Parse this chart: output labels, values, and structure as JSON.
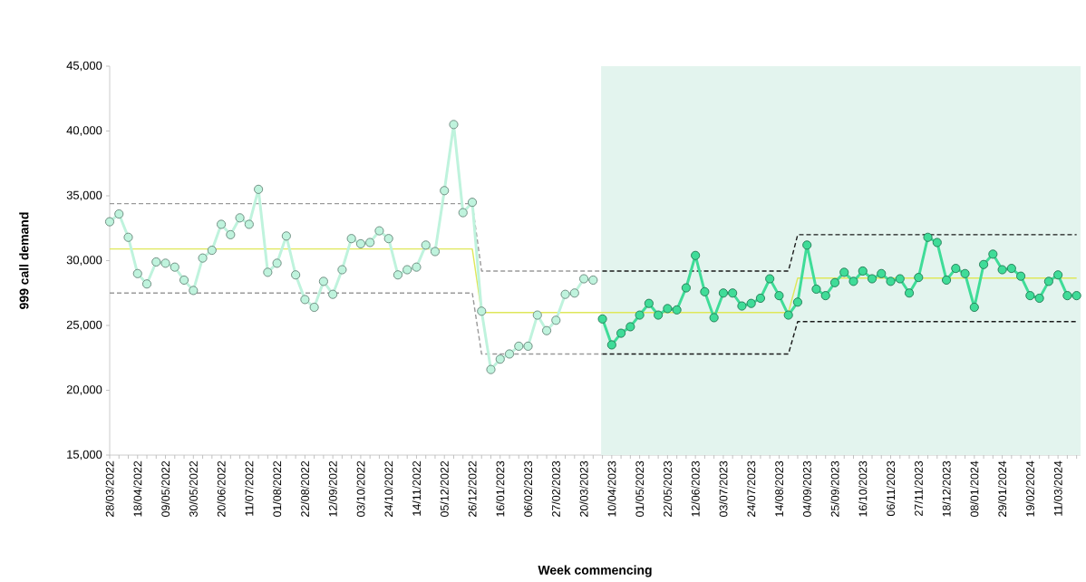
{
  "chart_data": {
    "type": "line",
    "xlabel": "Week commencing",
    "ylabel": "999 call demand",
    "x": [
      "2022-03-28",
      "2022-04-04",
      "2022-04-11",
      "2022-04-18",
      "2022-04-25",
      "2022-05-02",
      "2022-05-09",
      "2022-05-16",
      "2022-05-23",
      "2022-05-30",
      "2022-06-06",
      "2022-06-13",
      "2022-06-20",
      "2022-06-27",
      "2022-07-04",
      "2022-07-11",
      "2022-07-18",
      "2022-07-25",
      "2022-08-01",
      "2022-08-08",
      "2022-08-15",
      "2022-08-22",
      "2022-08-29",
      "2022-09-05",
      "2022-09-12",
      "2022-09-19",
      "2022-09-26",
      "2022-10-03",
      "2022-10-10",
      "2022-10-17",
      "2022-10-24",
      "2022-10-31",
      "2022-11-07",
      "2022-11-14",
      "2022-11-21",
      "2022-11-28",
      "2022-12-05",
      "2022-12-12",
      "2022-12-19",
      "2022-12-26",
      "2023-01-02",
      "2023-01-09",
      "2023-01-16",
      "2023-01-23",
      "2023-01-30",
      "2023-02-06",
      "2023-02-13",
      "2023-02-20",
      "2023-02-27",
      "2023-03-06",
      "2023-03-13",
      "2023-03-20",
      "2023-03-27",
      "2023-04-03",
      "2023-04-10",
      "2023-04-17",
      "2023-04-24",
      "2023-05-01",
      "2023-05-08",
      "2023-05-15",
      "2023-05-22",
      "2023-05-29",
      "2023-06-05",
      "2023-06-12",
      "2023-06-19",
      "2023-06-26",
      "2023-07-03",
      "2023-07-10",
      "2023-07-17",
      "2023-07-24",
      "2023-07-31",
      "2023-08-07",
      "2023-08-14",
      "2023-08-21",
      "2023-08-28",
      "2023-09-04",
      "2023-09-11",
      "2023-09-18",
      "2023-09-25",
      "2023-10-02",
      "2023-10-09",
      "2023-10-16",
      "2023-10-23",
      "2023-10-30",
      "2023-11-06",
      "2023-11-13",
      "2023-11-20",
      "2023-11-27",
      "2023-12-04",
      "2023-12-11",
      "2023-12-18",
      "2023-12-25",
      "2024-01-01",
      "2024-01-08",
      "2024-01-15",
      "2024-01-22",
      "2024-01-29",
      "2024-02-05",
      "2024-02-12",
      "2024-02-19",
      "2024-02-26",
      "2024-03-04",
      "2024-03-11",
      "2024-03-18",
      "2024-03-25"
    ],
    "series": [
      {
        "color": "#9a9a9a",
        "line_style": "dashed",
        "marker": "none",
        "x": [
          "2022-03-28",
          "2022-12-26",
          "2023-01-02",
          "2023-04-03"
        ],
        "values": [
          34400,
          34400,
          29200,
          29200
        ]
      },
      {
        "color": "#9a9a9a",
        "line_style": "dashed",
        "marker": "none",
        "x": [
          "2022-03-28",
          "2022-12-26",
          "2023-01-02",
          "2023-04-03"
        ],
        "values": [
          27500,
          27500,
          22800,
          22800
        ]
      },
      {
        "color": "#1a1a1a",
        "line_style": "dashed",
        "marker": "none",
        "x": [
          "2023-04-03",
          "2023-08-21",
          "2023-08-28",
          "2024-03-25"
        ],
        "values": [
          29200,
          29200,
          32000,
          32000
        ]
      },
      {
        "color": "#1a1a1a",
        "line_style": "dashed",
        "marker": "none",
        "x": [
          "2023-04-03",
          "2023-08-21",
          "2023-08-28",
          "2024-03-25"
        ],
        "values": [
          22800,
          22800,
          25300,
          25300
        ]
      },
      {
        "color": "#dfe75a",
        "line_style": "solid",
        "marker": "none",
        "x": [
          "2022-03-28",
          "2022-12-26",
          "2023-01-02",
          "2023-08-21",
          "2023-08-28",
          "2024-03-25"
        ],
        "values": [
          30900,
          30900,
          26000,
          26000,
          28650,
          28650
        ]
      },
      {
        "color": "#bff3dd",
        "line_style": "solid",
        "marker": "circle",
        "values": [
          33000,
          33600,
          31800,
          29000,
          28200,
          29900,
          29800,
          29500,
          28500,
          27700,
          30200,
          30800,
          32800,
          32000,
          33300,
          32800,
          35500,
          29100,
          29800,
          31900,
          28900,
          27000,
          26400,
          28400,
          27400,
          29300,
          31700,
          31300,
          31400,
          32300,
          31700,
          28900,
          29300,
          29500,
          31200,
          30700,
          35400,
          40500,
          33700,
          34500,
          26100,
          21600,
          22400,
          22800,
          23400,
          23400,
          25800,
          24600,
          25400,
          27400,
          27500,
          28600,
          28500,
          null,
          null,
          null,
          null,
          null,
          null,
          null,
          null,
          null,
          null,
          null,
          null,
          null,
          null,
          null,
          null,
          null,
          null,
          null,
          null,
          null,
          null,
          null,
          null,
          null,
          null,
          null,
          null,
          null,
          null,
          null,
          null,
          null,
          null,
          null,
          null,
          null,
          null,
          null,
          null,
          null,
          null,
          null,
          null,
          null,
          null,
          null,
          null,
          null,
          null,
          null,
          null
        ]
      },
      {
        "color": "#3fdc98",
        "line_style": "solid",
        "marker": "circle",
        "values": [
          null,
          null,
          null,
          null,
          null,
          null,
          null,
          null,
          null,
          null,
          null,
          null,
          null,
          null,
          null,
          null,
          null,
          null,
          null,
          null,
          null,
          null,
          null,
          null,
          null,
          null,
          null,
          null,
          null,
          null,
          null,
          null,
          null,
          null,
          null,
          null,
          null,
          null,
          null,
          null,
          null,
          null,
          null,
          null,
          null,
          null,
          null,
          null,
          null,
          null,
          null,
          null,
          null,
          25500,
          23500,
          24400,
          24900,
          25800,
          26700,
          25800,
          26300,
          26200,
          27900,
          30400,
          27600,
          25600,
          27500,
          27500,
          26500,
          26700,
          27100,
          28600,
          27300,
          25800,
          26800,
          31200,
          27800,
          27300,
          28300,
          29100,
          28400,
          29200,
          28600,
          29000,
          28400,
          28600,
          27500,
          28700,
          31800,
          31400,
          28500,
          29400,
          29000,
          26400,
          29700,
          30500,
          29300,
          29400,
          28800,
          27300,
          27100,
          28400,
          28900,
          27300,
          27300
        ]
      }
    ],
    "bands": [
      {
        "axis": "x",
        "from": "2023-04-02",
        "to": "2024-03-28",
        "color": "#e3f4ee"
      }
    ],
    "xlim": [
      "2022-03-28",
      "2024-03-28"
    ],
    "ylim": [
      15000,
      45000
    ],
    "yticks": [
      {
        "value": 15000,
        "label": "15,000"
      },
      {
        "value": 20000,
        "label": "20,000"
      },
      {
        "value": 25000,
        "label": "25,000"
      },
      {
        "value": 30000,
        "label": "30,000"
      },
      {
        "value": 35000,
        "label": "35,000"
      },
      {
        "value": 40000,
        "label": "40,000"
      },
      {
        "value": 45000,
        "label": "45,000"
      }
    ],
    "xticks": [
      {
        "value": "2022-03-28",
        "label": "28/03/2022"
      },
      {
        "value": "2022-04-04",
        "label": null
      },
      {
        "value": "2022-04-11",
        "label": null
      },
      {
        "value": "2022-04-18",
        "label": "18/04/2022"
      },
      {
        "value": "2022-04-25",
        "label": null
      },
      {
        "value": "2022-05-02",
        "label": null
      },
      {
        "value": "2022-05-09",
        "label": "09/05/2022"
      },
      {
        "value": "2022-05-16",
        "label": null
      },
      {
        "value": "2022-05-23",
        "label": null
      },
      {
        "value": "2022-05-30",
        "label": "30/05/2022"
      },
      {
        "value": "2022-06-06",
        "label": null
      },
      {
        "value": "2022-06-13",
        "label": null
      },
      {
        "value": "2022-06-20",
        "label": "20/06/2022"
      },
      {
        "value": "2022-06-27",
        "label": null
      },
      {
        "value": "2022-07-04",
        "label": null
      },
      {
        "value": "2022-07-11",
        "label": "11/07/2022"
      },
      {
        "value": "2022-07-18",
        "label": null
      },
      {
        "value": "2022-07-25",
        "label": null
      },
      {
        "value": "2022-08-01",
        "label": "01/08/2022"
      },
      {
        "value": "2022-08-08",
        "label": null
      },
      {
        "value": "2022-08-15",
        "label": null
      },
      {
        "value": "2022-08-22",
        "label": "22/08/2022"
      },
      {
        "value": "2022-08-29",
        "label": null
      },
      {
        "value": "2022-09-05",
        "label": null
      },
      {
        "value": "2022-09-12",
        "label": "12/09/2022"
      },
      {
        "value": "2022-09-19",
        "label": null
      },
      {
        "value": "2022-09-26",
        "label": null
      },
      {
        "value": "2022-10-03",
        "label": "03/10/2022"
      },
      {
        "value": "2022-10-10",
        "label": null
      },
      {
        "value": "2022-10-17",
        "label": null
      },
      {
        "value": "2022-10-24",
        "label": "24/10/2022"
      },
      {
        "value": "2022-10-31",
        "label": null
      },
      {
        "value": "2022-11-07",
        "label": null
      },
      {
        "value": "2022-11-14",
        "label": "14/11/2022"
      },
      {
        "value": "2022-11-21",
        "label": null
      },
      {
        "value": "2022-11-28",
        "label": null
      },
      {
        "value": "2022-12-05",
        "label": "05/12/2022"
      },
      {
        "value": "2022-12-12",
        "label": null
      },
      {
        "value": "2022-12-19",
        "label": null
      },
      {
        "value": "2022-12-26",
        "label": "26/12/2022"
      },
      {
        "value": "2023-01-02",
        "label": null
      },
      {
        "value": "2023-01-09",
        "label": null
      },
      {
        "value": "2023-01-16",
        "label": "16/01/2023"
      },
      {
        "value": "2023-01-23",
        "label": null
      },
      {
        "value": "2023-01-30",
        "label": null
      },
      {
        "value": "2023-02-06",
        "label": "06/02/2023"
      },
      {
        "value": "2023-02-13",
        "label": null
      },
      {
        "value": "2023-02-20",
        "label": null
      },
      {
        "value": "2023-02-27",
        "label": "27/02/2023"
      },
      {
        "value": "2023-03-06",
        "label": null
      },
      {
        "value": "2023-03-13",
        "label": null
      },
      {
        "value": "2023-03-20",
        "label": "20/03/2023"
      },
      {
        "value": "2023-03-27",
        "label": null
      },
      {
        "value": "2023-04-03",
        "label": null
      },
      {
        "value": "2023-04-10",
        "label": "10/04/2023"
      },
      {
        "value": "2023-04-17",
        "label": null
      },
      {
        "value": "2023-04-24",
        "label": null
      },
      {
        "value": "2023-05-01",
        "label": "01/05/2023"
      },
      {
        "value": "2023-05-08",
        "label": null
      },
      {
        "value": "2023-05-15",
        "label": null
      },
      {
        "value": "2023-05-22",
        "label": "22/05/2023"
      },
      {
        "value": "2023-05-29",
        "label": null
      },
      {
        "value": "2023-06-05",
        "label": null
      },
      {
        "value": "2023-06-12",
        "label": "12/06/2023"
      },
      {
        "value": "2023-06-19",
        "label": null
      },
      {
        "value": "2023-06-26",
        "label": null
      },
      {
        "value": "2023-07-03",
        "label": "03/07/2023"
      },
      {
        "value": "2023-07-10",
        "label": null
      },
      {
        "value": "2023-07-17",
        "label": null
      },
      {
        "value": "2023-07-24",
        "label": "24/07/2023"
      },
      {
        "value": "2023-07-31",
        "label": null
      },
      {
        "value": "2023-08-07",
        "label": null
      },
      {
        "value": "2023-08-14",
        "label": "14/08/2023"
      },
      {
        "value": "2023-08-21",
        "label": null
      },
      {
        "value": "2023-08-28",
        "label": null
      },
      {
        "value": "2023-09-04",
        "label": "04/09/2023"
      },
      {
        "value": "2023-09-11",
        "label": null
      },
      {
        "value": "2023-09-18",
        "label": null
      },
      {
        "value": "2023-09-25",
        "label": "25/09/2023"
      },
      {
        "value": "2023-10-02",
        "label": null
      },
      {
        "value": "2023-10-09",
        "label": null
      },
      {
        "value": "2023-10-16",
        "label": "16/10/2023"
      },
      {
        "value": "2023-10-23",
        "label": null
      },
      {
        "value": "2023-10-30",
        "label": null
      },
      {
        "value": "2023-11-06",
        "label": "06/11/2023"
      },
      {
        "value": "2023-11-13",
        "label": null
      },
      {
        "value": "2023-11-20",
        "label": null
      },
      {
        "value": "2023-11-27",
        "label": "27/11/2023"
      },
      {
        "value": "2023-12-04",
        "label": null
      },
      {
        "value": "2023-12-11",
        "label": null
      },
      {
        "value": "2023-12-18",
        "label": "18/12/2023"
      },
      {
        "value": "2023-12-25",
        "label": null
      },
      {
        "value": "2024-01-01",
        "label": null
      },
      {
        "value": "2024-01-08",
        "label": "08/01/2024"
      },
      {
        "value": "2024-01-15",
        "label": null
      },
      {
        "value": "2024-01-22",
        "label": null
      },
      {
        "value": "2024-01-29",
        "label": "29/01/2024"
      },
      {
        "value": "2024-02-05",
        "label": null
      },
      {
        "value": "2024-02-12",
        "label": null
      },
      {
        "value": "2024-02-19",
        "label": "19/02/2024"
      },
      {
        "value": "2024-02-26",
        "label": null
      },
      {
        "value": "2024-03-04",
        "label": null
      },
      {
        "value": "2024-03-11",
        "label": "11/03/2024"
      },
      {
        "value": "2024-03-18",
        "label": null
      },
      {
        "value": "2024-03-25",
        "label": null
      }
    ]
  }
}
